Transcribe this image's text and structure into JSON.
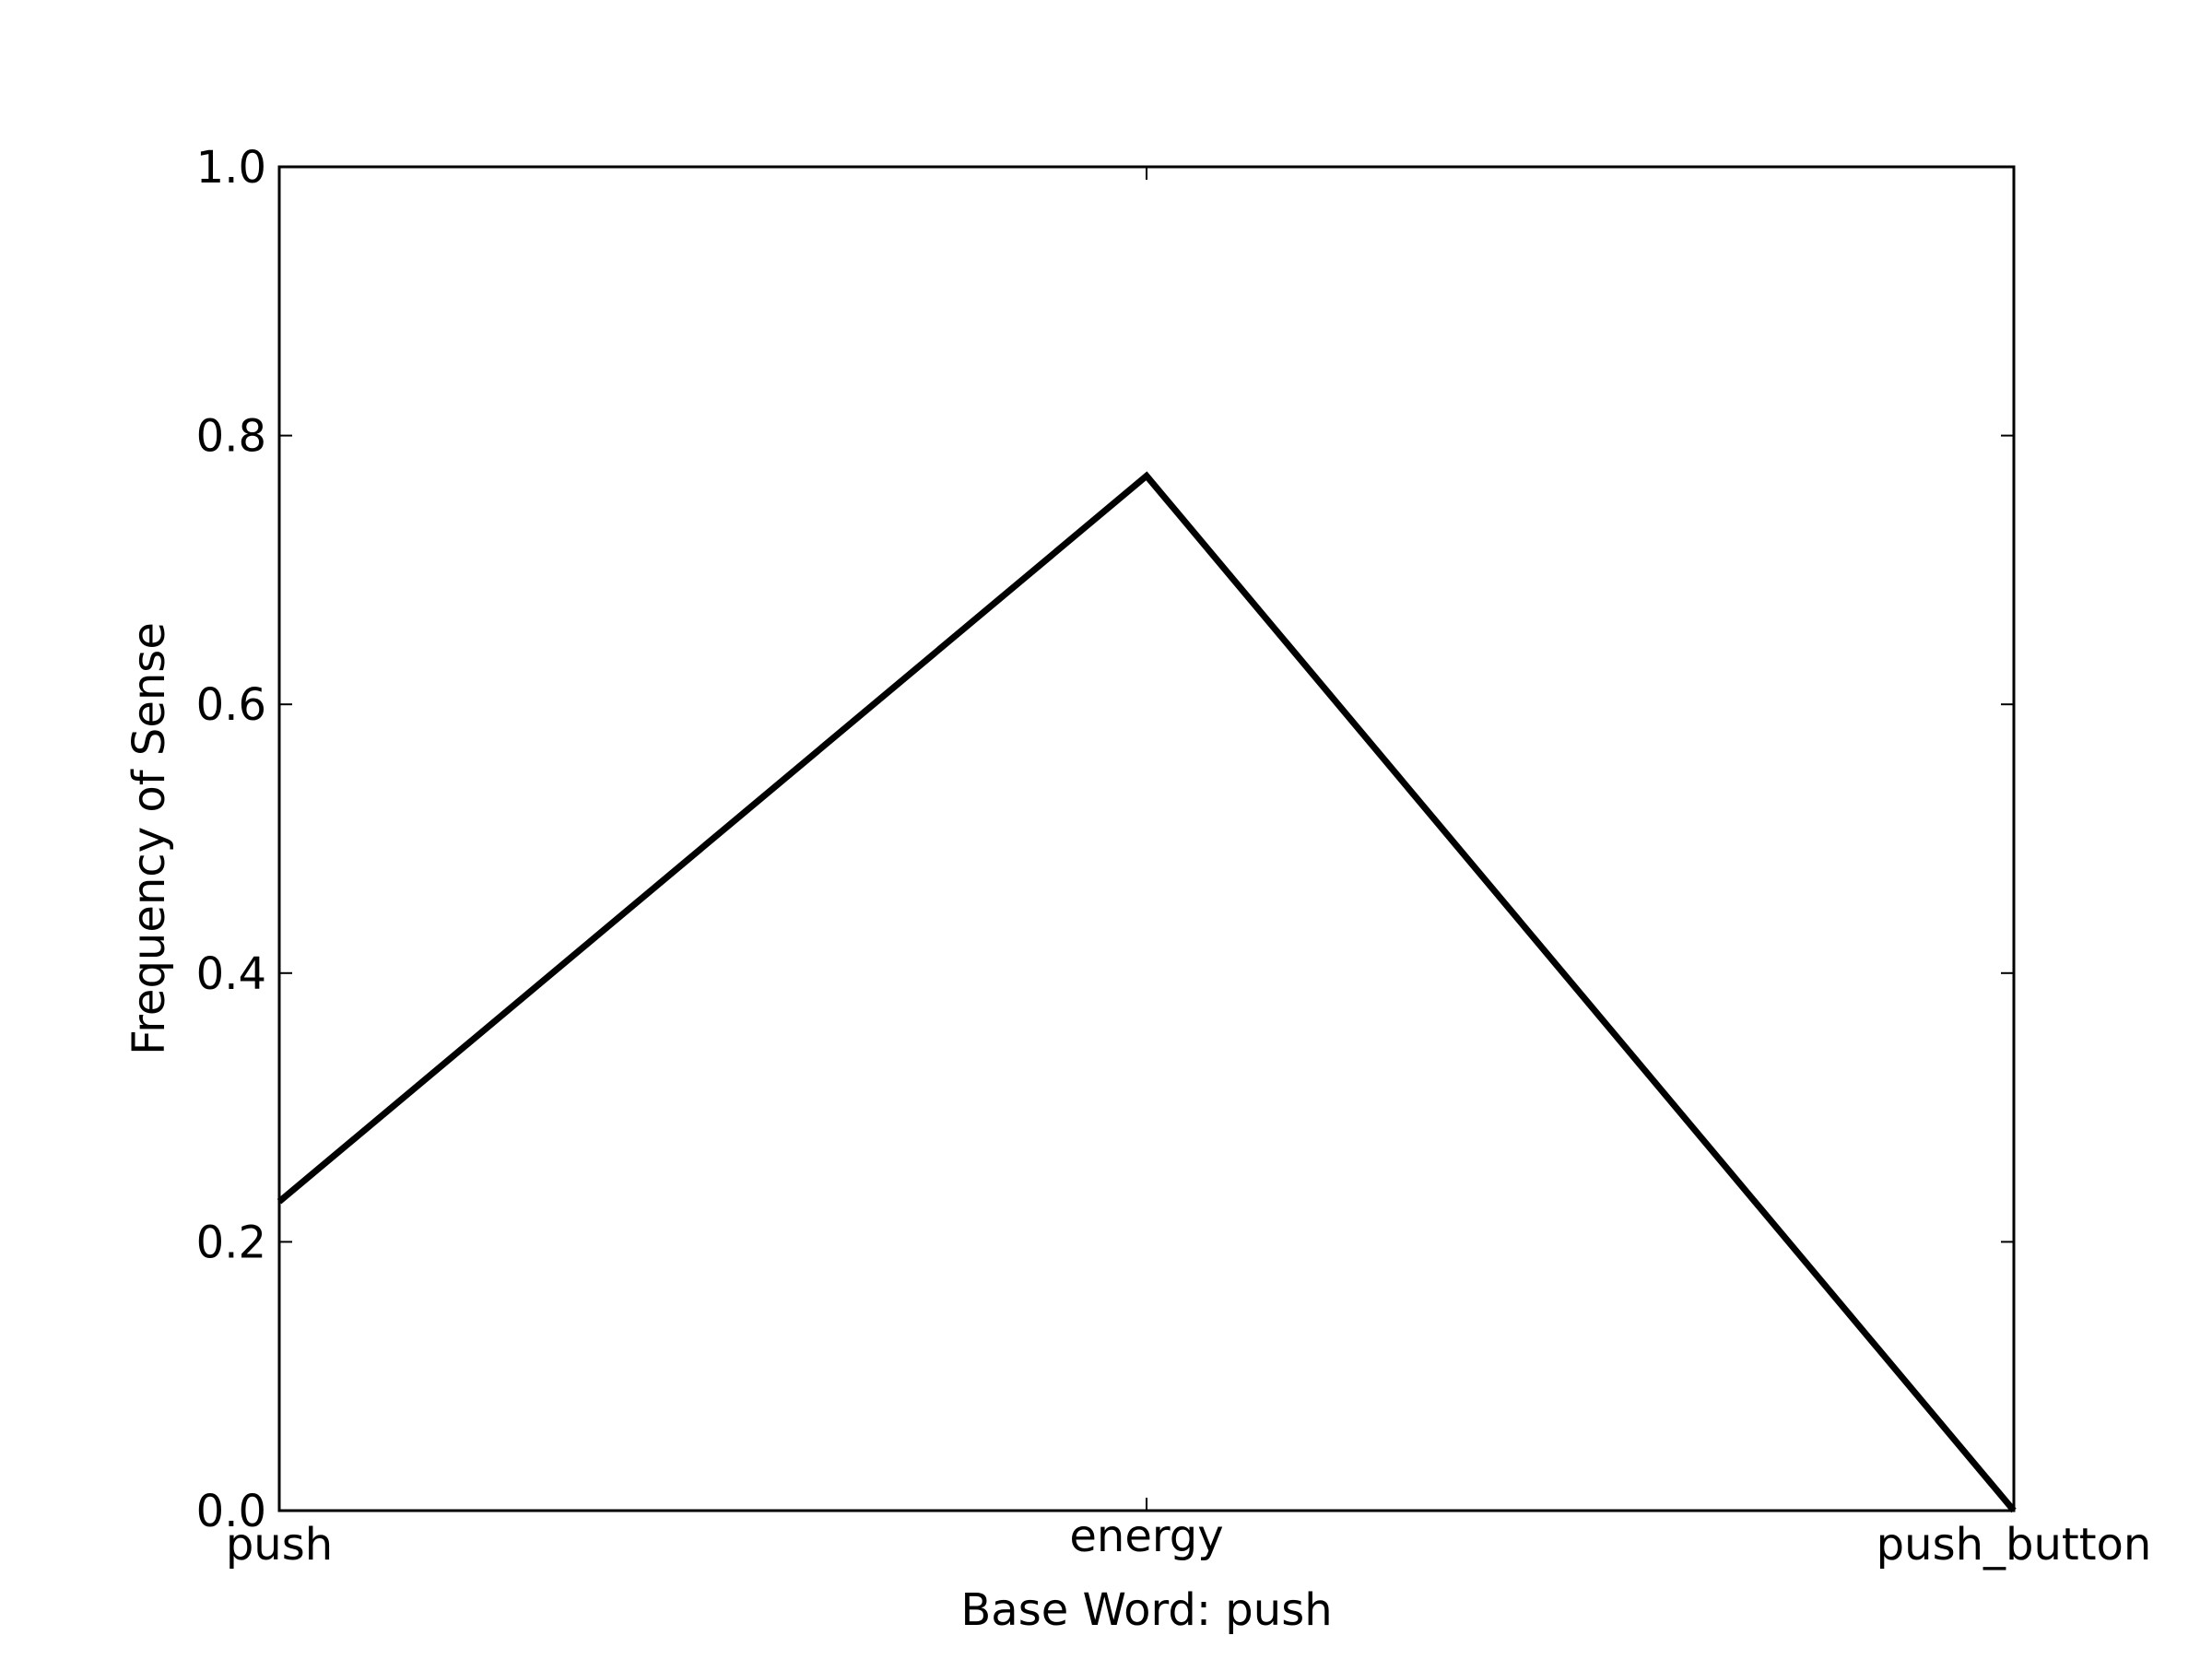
{
  "chart_data": {
    "type": "line",
    "categories": [
      "push",
      "energy",
      "push_button"
    ],
    "series": [
      {
        "values": [
          0.23,
          0.77,
          0.0
        ]
      }
    ],
    "xlabel": "Base Word: push",
    "ylabel": "Frequency of Sense",
    "ylim": [
      0,
      1.0
    ],
    "yticks": [
      "0.0",
      "0.2",
      "0.4",
      "0.6",
      "0.8",
      "1.0"
    ],
    "grid": false,
    "line_color": "#000000"
  }
}
